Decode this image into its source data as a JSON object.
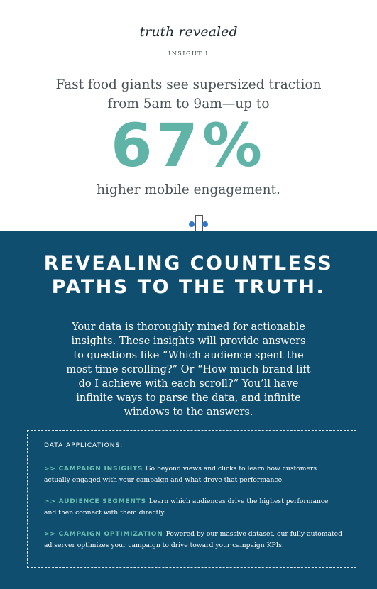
{
  "brand": "truth revealed",
  "insight_label": "INSIGHT I",
  "headline": "Fast food giants see supersized traction from 5am to 9am—up to",
  "big_stat": "67%",
  "subline": "higher mobile engagement.",
  "section_title_line1": "REVEALING COUNTLESS",
  "section_title_line2": "PATHS TO THE TRUTH.",
  "body": "Your data is thoroughly mined for actionable insights. These insights will provide answers to questions like “Which audience spent the most time scrolling?” Or “How much brand lift do I achieve with each scroll?” You’ll have infinite ways to parse the data, and infinite windows to the answers.",
  "applications": {
    "heading": "DATA APPLICATIONS:",
    "items": [
      {
        "key": ">> CAMPAIGN INSIGHTS",
        "text": "Go beyond views and clicks to learn how customers actually engaged with your campaign and what drove that performance."
      },
      {
        "key": ">> AUDIENCE SEGMENTS",
        "text": "Learn which audiences drive the highest performance and then connect with them directly."
      },
      {
        "key": ">> CAMPAIGN OPTIMIZATION",
        "text": "Powered by our massive dataset, our fully-automated ad server optimizes your campaign to drive toward your campaign KPIs."
      }
    ]
  },
  "colors": {
    "accent_teal": "#5fb3a7",
    "section_bg": "#0f4e6e",
    "text_gray": "#4a5358"
  }
}
